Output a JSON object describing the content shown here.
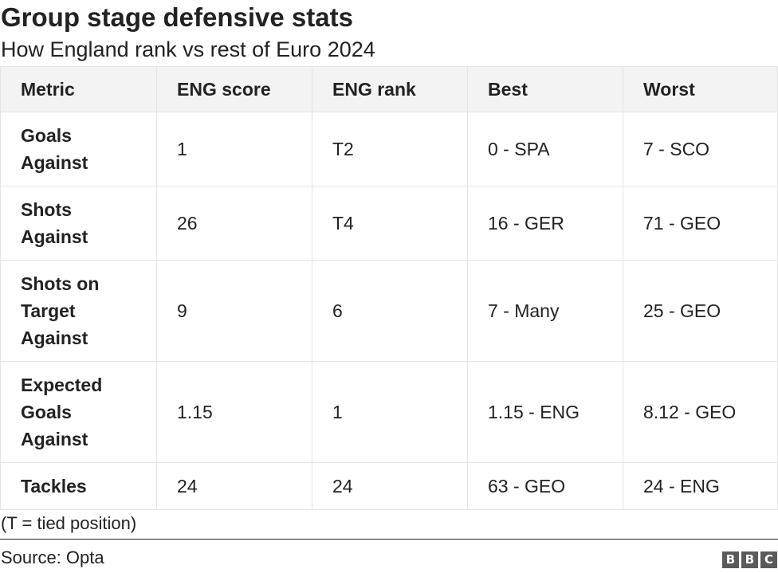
{
  "chart_data": {
    "type": "table",
    "title": "Group stage defensive stats",
    "subtitle": "How England rank vs rest of Euro 2024",
    "columns": [
      "Metric",
      "ENG score",
      "ENG rank",
      "Best",
      "Worst"
    ],
    "rows": [
      {
        "metric": "Goals Against",
        "eng_score": "1",
        "eng_rank": "T2",
        "best": "0 - SPA",
        "worst": "7 - SCO"
      },
      {
        "metric": "Shots Against",
        "eng_score": "26",
        "eng_rank": "T4",
        "best": "16 - GER",
        "worst": "71 - GEO"
      },
      {
        "metric": "Shots on Target Against",
        "eng_score": "9",
        "eng_rank": "6",
        "best": "7 - Many",
        "worst": "25 - GEO"
      },
      {
        "metric": "Expected Goals Against",
        "eng_score": "1.15",
        "eng_rank": "1",
        "best": "1.15 - ENG",
        "worst": "8.12 - GEO"
      },
      {
        "metric": "Tackles",
        "eng_score": "24",
        "eng_rank": "24",
        "best": "63 - GEO",
        "worst": "24 - ENG"
      }
    ],
    "note": "(T = tied position)",
    "source": "Source: Opta",
    "logo": [
      "B",
      "B",
      "C"
    ]
  }
}
